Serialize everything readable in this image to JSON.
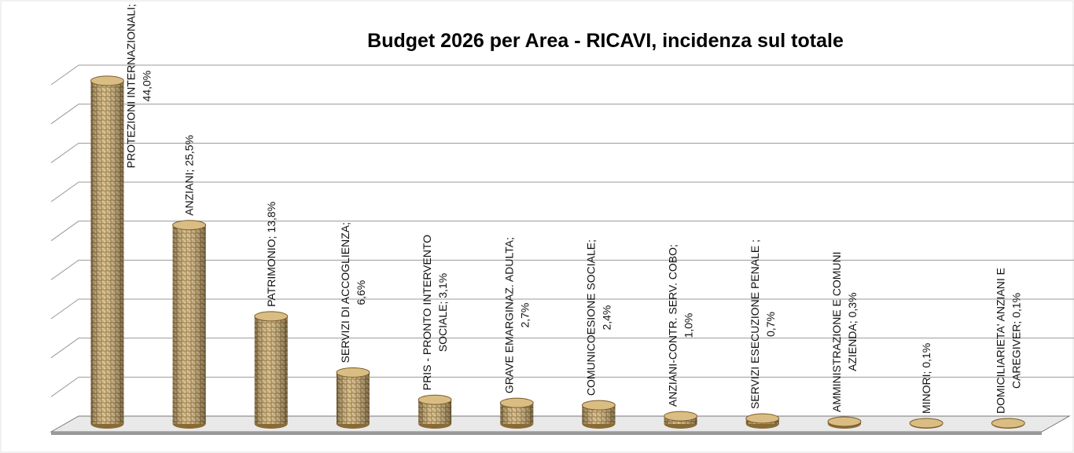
{
  "chart_data": {
    "type": "bar",
    "title": "Budget  2026 per Area - RICAVI, incidenza sul totale",
    "values": [
      44.0,
      25.5,
      13.8,
      6.6,
      3.1,
      2.7,
      2.4,
      1.0,
      0.7,
      0.3,
      0.1,
      0.1
    ],
    "value_labels": [
      "PROTEZIONI INTERNAZIONALI; 44,0%",
      "ANZIANI; 25,5%",
      "PATRIMONIO; 13,8%",
      "SERVIZI DI ACCOGLIENZA; 6,6%",
      "PRIS - PRONTO INTERVENTO SOCIALE; 3,1%",
      "GRAVE EMARGINAZ. ADULTA; 2,7%",
      "COMUNICOESIONE SOCIALE; 2,4%",
      "ANZIANI-CONTR. SERV. COBO; 1,0%",
      "SERVIZI ESECUZIONE PENALE ; 0,7%",
      "AMMINISTRAZIONE E COMUNI AZIENDA; 0,3%",
      "MINORI; 0,1%",
      "DOMICILIARIETA' ANZIANI E CAREGIVER; 0,1%"
    ],
    "color": "#c9a86a",
    "ylim": [
      0,
      45
    ],
    "yticks": [
      0,
      5,
      10,
      15,
      20,
      25,
      30,
      35,
      40,
      45
    ],
    "grid": true
  }
}
